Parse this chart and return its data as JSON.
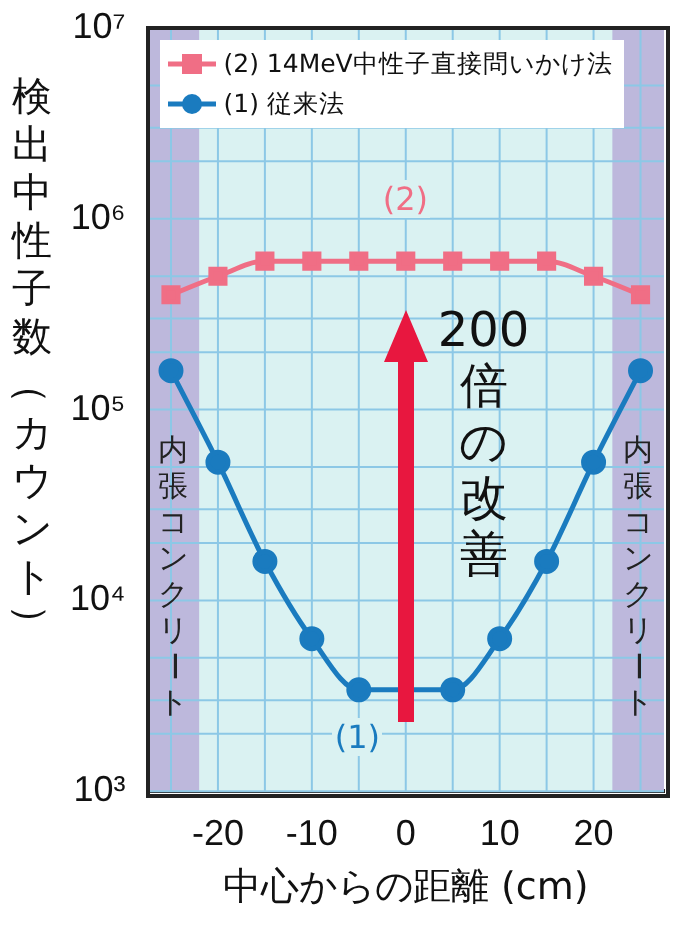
{
  "chart_data": {
    "type": "line",
    "ylabel": "検出中性子数（カウント）",
    "xlabel": "中心からの距離 (cm)",
    "log": "y",
    "grid": true,
    "legend": "top left",
    "marker": "circle",
    "line_style": "solid",
    "xlim": [
      -27.5,
      27.5
    ],
    "xticks": [
      {
        "value": -25,
        "label": null
      },
      -20,
      {
        "value": -15,
        "label": null
      },
      -10,
      {
        "value": -5,
        "label": null
      },
      0,
      {
        "value": 5,
        "label": null
      },
      10,
      {
        "value": 15,
        "label": null
      },
      20,
      {
        "value": 25,
        "label": null
      }
    ],
    "ylim": [
      1000,
      10000000
    ],
    "yticks": [
      {
        "value": 1000,
        "label": "10³"
      },
      {
        "value": 2000,
        "label": null
      },
      {
        "value": 3000,
        "label": null
      },
      {
        "value": 5000,
        "label": null
      },
      {
        "value": 10000,
        "label": "10⁴"
      },
      {
        "value": 20000,
        "label": null
      },
      {
        "value": 30000,
        "label": null
      },
      {
        "value": 50000,
        "label": null
      },
      {
        "value": 100000,
        "label": "10⁵"
      },
      {
        "value": 200000,
        "label": null
      },
      {
        "value": 300000,
        "label": null
      },
      {
        "value": 500000,
        "label": null
      },
      {
        "value": 1000000,
        "label": "10⁶"
      },
      {
        "value": 2000000,
        "label": null
      },
      {
        "value": 3000000,
        "label": null
      },
      {
        "value": 5000000,
        "label": null
      },
      {
        "value": 10000000,
        "label": "10⁷"
      }
    ],
    "series": [
      {
        "name": "(2) 14MeV中性子直接問いかけ法",
        "color": "#f06e85",
        "marker": "square",
        "x": [
          -25,
          -20,
          -15,
          -10,
          -5,
          0,
          5,
          10,
          15,
          20,
          25
        ],
        "values": [
          400000,
          500000,
          600000,
          600000,
          600000,
          600000,
          600000,
          600000,
          600000,
          500000,
          400000
        ]
      },
      {
        "name": "(1) 従来法",
        "color": "#1a7bbf",
        "x": [
          -25,
          -20,
          -15,
          -10,
          -5,
          5,
          10,
          15,
          20,
          25
        ],
        "values": [
          160000,
          53000,
          16000,
          6300,
          3400,
          3400,
          6300,
          16000,
          53000,
          160000
        ]
      }
    ],
    "bands": [
      {
        "axis": "x",
        "from": -27.5,
        "to": -22,
        "label": "内張コンクリート",
        "color": "#bdb8dc"
      },
      {
        "axis": "x",
        "from": 22,
        "to": 27.5,
        "label": "内張コンクリート",
        "color": "#bdb8dc"
      }
    ],
    "annotations": [
      "(2)",
      "(1)",
      "200倍の改善"
    ]
  }
}
